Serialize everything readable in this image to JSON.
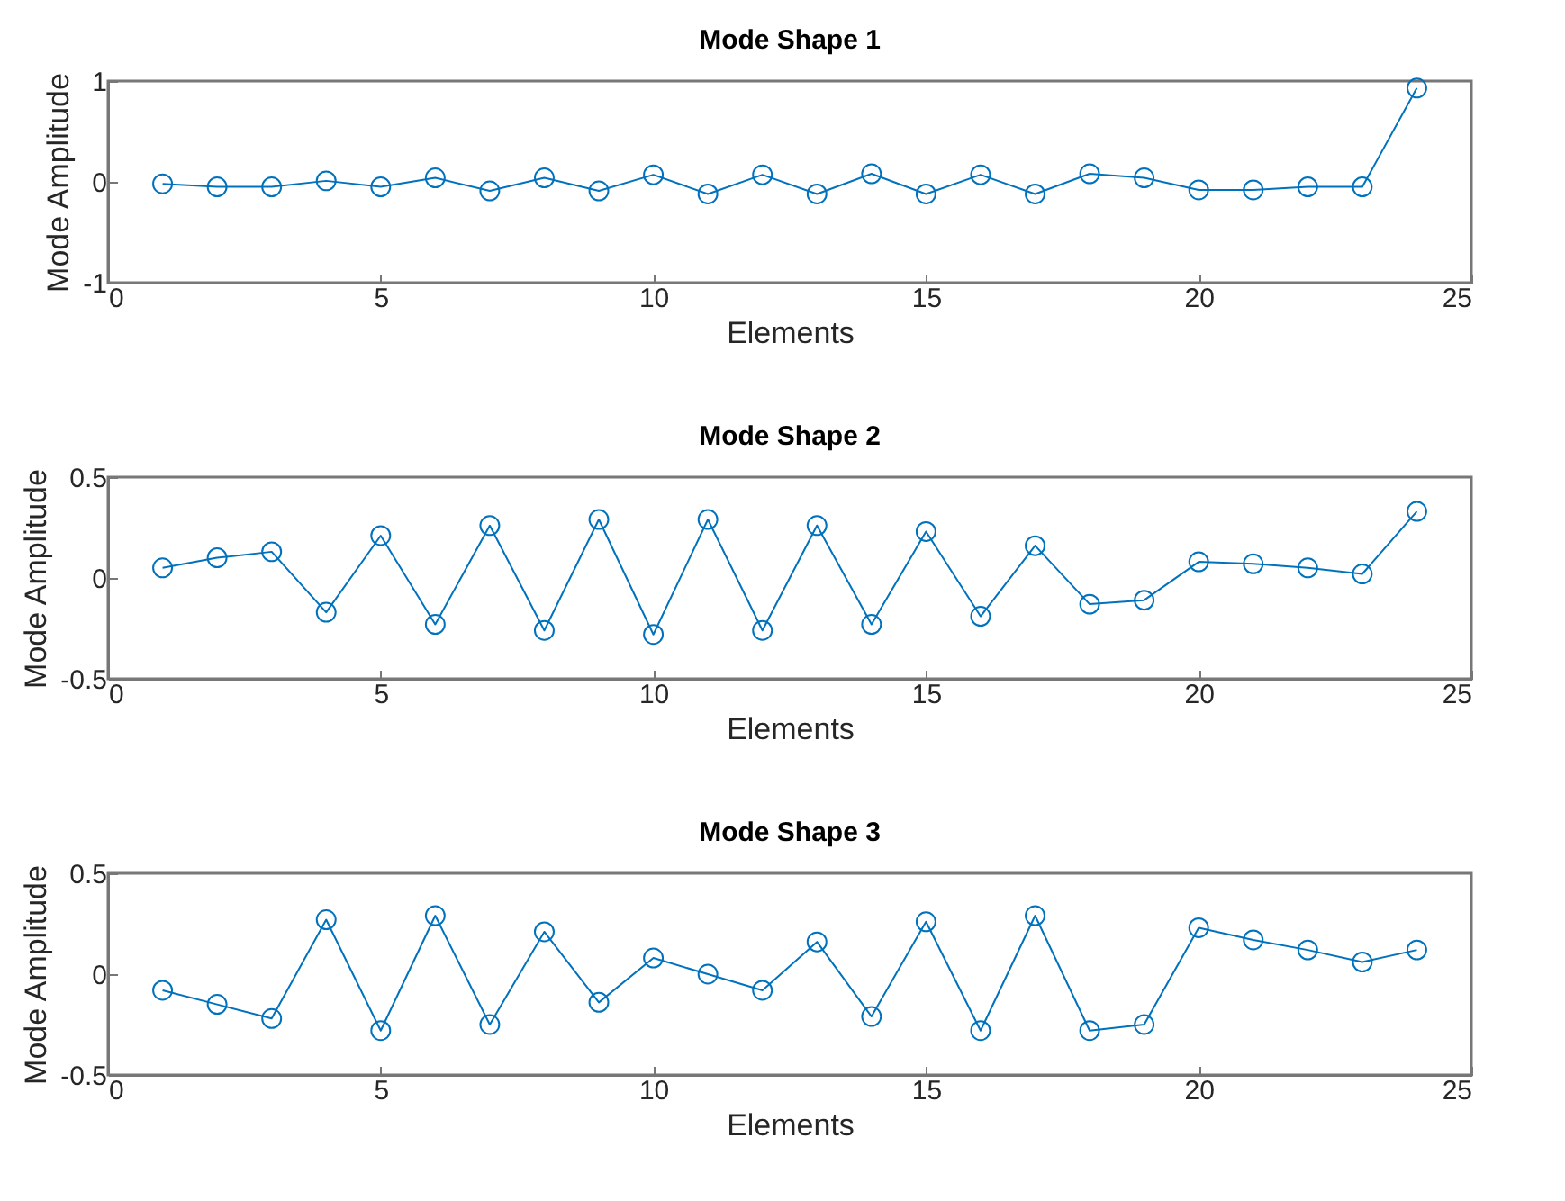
{
  "chart_data": [
    {
      "type": "line",
      "title": "Mode Shape 1",
      "xlabel": "Elements",
      "ylabel": "Mode Amplitude",
      "marker": "circle",
      "xlim": [
        0,
        25
      ],
      "xticks": [
        0,
        5,
        10,
        15,
        20,
        25
      ],
      "ylim": [
        -1,
        1
      ],
      "yticks": [
        -1,
        0,
        1
      ],
      "x": [
        1,
        2,
        3,
        4,
        5,
        6,
        7,
        8,
        9,
        10,
        11,
        12,
        13,
        14,
        15,
        16,
        17,
        18,
        19,
        20,
        21,
        22,
        23,
        24
      ],
      "series": [
        {
          "color": "#0072bd",
          "values": [
            -0.02,
            -0.05,
            -0.05,
            0.01,
            -0.05,
            0.04,
            -0.09,
            0.04,
            -0.09,
            0.07,
            -0.12,
            0.07,
            -0.12,
            0.08,
            -0.12,
            0.07,
            -0.12,
            0.08,
            0.04,
            -0.08,
            -0.08,
            -0.05,
            -0.05,
            0.93
          ]
        }
      ]
    },
    {
      "type": "line",
      "title": "Mode Shape 2",
      "xlabel": "Elements",
      "ylabel": "Mode Amplitude",
      "marker": "circle",
      "xlim": [
        0,
        25
      ],
      "xticks": [
        0,
        5,
        10,
        15,
        20,
        25
      ],
      "ylim": [
        -0.5,
        0.5
      ],
      "yticks": [
        -0.5,
        0,
        0.5
      ],
      "x": [
        1,
        2,
        3,
        4,
        5,
        6,
        7,
        8,
        9,
        10,
        11,
        12,
        13,
        14,
        15,
        16,
        17,
        18,
        19,
        20,
        21,
        22,
        23,
        24
      ],
      "series": [
        {
          "color": "#0072bd",
          "values": [
            0.05,
            0.1,
            0.13,
            -0.17,
            0.21,
            -0.23,
            0.26,
            -0.26,
            0.29,
            -0.28,
            0.29,
            -0.26,
            0.26,
            -0.23,
            0.23,
            -0.19,
            0.16,
            -0.13,
            -0.11,
            0.08,
            0.07,
            0.05,
            0.02,
            0.33
          ]
        }
      ]
    },
    {
      "type": "line",
      "title": "Mode Shape 3",
      "xlabel": "Elements",
      "ylabel": "Mode Amplitude",
      "marker": "circle",
      "xlim": [
        0,
        25
      ],
      "xticks": [
        0,
        5,
        10,
        15,
        20,
        25
      ],
      "ylim": [
        -0.5,
        0.5
      ],
      "yticks": [
        -0.5,
        0,
        0.5
      ],
      "x": [
        1,
        2,
        3,
        4,
        5,
        6,
        7,
        8,
        9,
        10,
        11,
        12,
        13,
        14,
        15,
        16,
        17,
        18,
        19,
        20,
        21,
        22,
        23,
        24
      ],
      "series": [
        {
          "color": "#0072bd",
          "values": [
            -0.08,
            -0.15,
            -0.22,
            0.27,
            -0.28,
            0.29,
            -0.25,
            0.21,
            -0.14,
            0.08,
            0,
            -0.08,
            0.16,
            -0.21,
            0.26,
            -0.28,
            0.29,
            -0.28,
            -0.25,
            0.23,
            0.17,
            0.12,
            0.06,
            0.12
          ]
        }
      ]
    }
  ]
}
